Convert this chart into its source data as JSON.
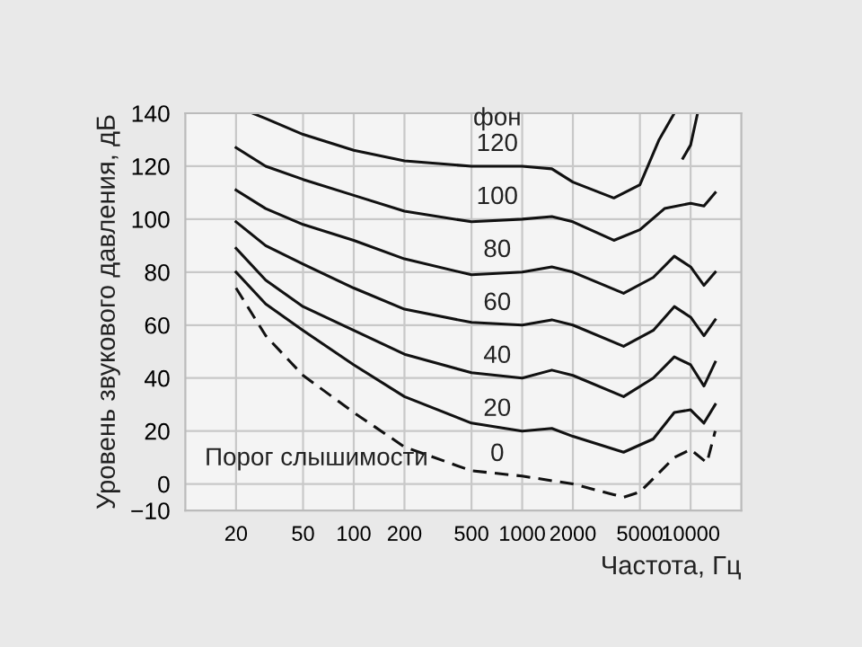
{
  "chart_data": {
    "type": "line",
    "xlabel": "Частота, Гц",
    "ylabel": "Уровень звукового давления, дБ",
    "log": "x",
    "grid": true,
    "marker": "none",
    "xlim": [
      10,
      20000
    ],
    "xticks": [
      20,
      50,
      100,
      200,
      500,
      1000,
      2000,
      5000,
      10000
    ],
    "ylim": [
      -10,
      140
    ],
    "yticks": [
      -10,
      0,
      20,
      40,
      60,
      80,
      100,
      120,
      140
    ],
    "series": [
      {
        "name": "0",
        "color": "#111111",
        "line_style": "dashed",
        "x": [
          20,
          30,
          50,
          100,
          200,
          500,
          1000,
          2000,
          3500,
          4000,
          5000,
          8000,
          10000,
          12500,
          14000
        ],
        "values": [
          74,
          56,
          41,
          27,
          14,
          5,
          3,
          0,
          -4,
          -5,
          -3,
          10,
          13,
          8,
          20
        ]
      },
      {
        "name": "20",
        "color": "#111111",
        "line_style": "solid",
        "x": [
          20,
          30,
          50,
          100,
          200,
          500,
          1000,
          1500,
          2000,
          4000,
          6000,
          8000,
          10000,
          12000,
          14000
        ],
        "values": [
          80,
          68,
          58,
          45,
          33,
          23,
          20,
          21,
          18,
          12,
          17,
          27,
          28,
          23,
          30
        ]
      },
      {
        "name": "40",
        "color": "#111111",
        "line_style": "solid",
        "x": [
          20,
          30,
          50,
          100,
          200,
          500,
          1000,
          1500,
          2000,
          4000,
          6000,
          8000,
          10000,
          12000,
          14000
        ],
        "values": [
          89,
          77,
          67,
          58,
          49,
          42,
          40,
          43,
          41,
          33,
          40,
          48,
          45,
          37,
          46
        ]
      },
      {
        "name": "60",
        "color": "#111111",
        "line_style": "solid",
        "x": [
          20,
          30,
          50,
          100,
          200,
          500,
          1000,
          1500,
          2000,
          4000,
          6000,
          8000,
          10000,
          12000,
          14000
        ],
        "values": [
          99,
          90,
          83,
          74,
          66,
          61,
          60,
          62,
          60,
          52,
          58,
          67,
          63,
          56,
          62
        ]
      },
      {
        "name": "80",
        "color": "#111111",
        "line_style": "solid",
        "x": [
          20,
          30,
          50,
          100,
          200,
          500,
          1000,
          1500,
          2000,
          4000,
          6000,
          8000,
          10000,
          12000,
          14000
        ],
        "values": [
          111,
          104,
          98,
          92,
          85,
          79,
          80,
          82,
          80,
          72,
          78,
          86,
          82,
          75,
          80
        ]
      },
      {
        "name": "100",
        "color": "#111111",
        "line_style": "solid",
        "x": [
          20,
          30,
          50,
          100,
          200,
          500,
          1000,
          1500,
          2000,
          3500,
          5000,
          7000,
          10000,
          12000,
          14000
        ],
        "values": [
          127,
          120,
          115,
          109,
          103,
          99,
          100,
          101,
          99,
          92,
          96,
          104,
          106,
          105,
          110
        ]
      },
      {
        "name": "120",
        "color": "#111111",
        "line_style": "solid",
        "x": [
          25,
          30,
          50,
          100,
          200,
          500,
          1000,
          1500,
          2000,
          3500,
          5000,
          6500,
          8000
        ],
        "values": [
          140,
          138,
          132,
          126,
          122,
          120,
          120,
          119,
          114,
          108,
          113,
          130,
          140
        ]
      },
      {
        "color": "#111111",
        "line_style": "solid",
        "x": [
          9000,
          10000,
          11000
        ],
        "values": [
          123,
          128,
          140
        ]
      }
    ],
    "annotations": [
      "фон",
      "Порог слышимости"
    ]
  }
}
